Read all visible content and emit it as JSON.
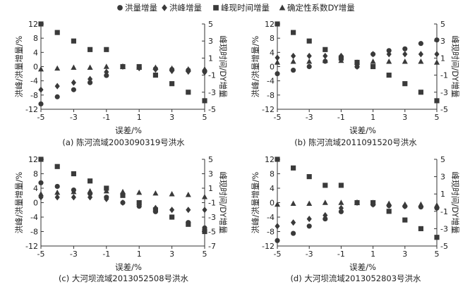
{
  "legend": [
    {
      "marker": "circle",
      "label": "洪量增量"
    },
    {
      "marker": "diamond",
      "label": "洪峰增量"
    },
    {
      "marker": "square",
      "label": "峰现时间增量"
    },
    {
      "marker": "triangle",
      "label": "确定性系数DY增量"
    }
  ],
  "chart_data": [
    {
      "type": "scatter",
      "caption": "(a) 陈河流域2003090319号洪水",
      "xlabel": "误差/%",
      "ylabel_left": "洪峰/洪量增量/%",
      "ylabel_right": "峰现时间/DY增量",
      "xlim": [
        -5,
        5
      ],
      "xticks": [
        -5,
        -3,
        -1,
        1,
        3,
        5
      ],
      "ylim_left": [
        -12,
        12
      ],
      "yticks_left": [
        -12,
        -8,
        -4,
        0,
        4,
        8,
        12
      ],
      "ylim_right": [
        -5,
        5
      ],
      "yticks_right": [
        -5,
        -3,
        -1,
        1,
        3,
        5
      ],
      "series": [
        {
          "name": "洪量增量",
          "marker": "circle",
          "axis": "left",
          "x": [
            -5,
            -4,
            -3,
            -2,
            -1,
            0,
            1,
            2,
            3,
            4,
            5
          ],
          "y": [
            -10.5,
            -8.5,
            -6.5,
            -4.5,
            -2.5,
            0,
            -0.3,
            -0.6,
            -0.8,
            -1.0,
            -1.2
          ]
        },
        {
          "name": "洪峰增量",
          "marker": "diamond",
          "axis": "left",
          "x": [
            -5,
            -4,
            -3,
            -2,
            -1,
            0,
            1,
            2,
            3,
            4,
            5
          ],
          "y": [
            -6.5,
            -5.5,
            -4.5,
            -3.5,
            -1.5,
            0,
            -0.4,
            -0.8,
            -1.2,
            -1.4,
            -1.6
          ]
        },
        {
          "name": "峰现时间增量",
          "marker": "square",
          "axis": "right",
          "x": [
            -5,
            -4,
            -3,
            -2,
            -1,
            0,
            1,
            2,
            3,
            4,
            5
          ],
          "y": [
            5,
            4,
            3,
            2,
            2,
            0,
            0,
            -1,
            -2,
            -3,
            -4
          ]
        },
        {
          "name": "确定性系数DY增量",
          "marker": "triangle",
          "axis": "right",
          "x": [
            -5,
            -4,
            -3,
            -2,
            -1,
            0,
            1,
            2,
            3,
            4,
            5
          ],
          "y": [
            -0.3,
            -0.2,
            -0.1,
            -0.1,
            0,
            0,
            -0.1,
            -0.1,
            -0.2,
            -0.3,
            -0.3
          ]
        }
      ]
    },
    {
      "type": "scatter",
      "caption": "(b) 陈河流域2011091520号洪水",
      "xlabel": "误差/%",
      "ylabel_left": "洪峰/洪量增量/%",
      "ylabel_right": "峰现时间/DY增量",
      "xlim": [
        -5,
        5
      ],
      "xticks": [
        -5,
        -3,
        -1,
        1,
        3,
        5
      ],
      "ylim_left": [
        -12,
        12
      ],
      "yticks_left": [
        -12,
        -8,
        -4,
        0,
        4,
        8,
        12
      ],
      "ylim_right": [
        -5,
        5
      ],
      "yticks_right": [
        -5,
        -3,
        -1,
        1,
        3,
        5
      ],
      "series": [
        {
          "name": "洪量增量",
          "marker": "circle",
          "axis": "left",
          "x": [
            -5,
            -4,
            -3,
            -2,
            -1,
            0,
            1,
            2,
            3,
            4,
            5
          ],
          "y": [
            -2,
            -1,
            0,
            1.5,
            2.5,
            0,
            3.5,
            4.5,
            5,
            6.5,
            7.5
          ]
        },
        {
          "name": "洪峰增量",
          "marker": "diamond",
          "axis": "left",
          "x": [
            -5,
            -4,
            -3,
            -2,
            -1,
            0,
            1,
            2,
            3,
            4,
            5
          ],
          "y": [
            2.5,
            3,
            3,
            3,
            3,
            0,
            3.5,
            3.5,
            3.5,
            3.5,
            3.5
          ]
        },
        {
          "name": "峰现时间增量",
          "marker": "square",
          "axis": "right",
          "x": [
            -5,
            -4,
            -3,
            -2,
            -1,
            0,
            1,
            2,
            3,
            4,
            5
          ],
          "y": [
            5,
            4,
            3,
            2,
            1,
            0.5,
            0,
            -1,
            -2,
            -3,
            -4
          ]
        },
        {
          "name": "确定性系数DY增量",
          "marker": "triangle",
          "axis": "right",
          "x": [
            -5,
            -4,
            -3,
            -2,
            -1,
            0,
            1,
            2,
            3,
            4,
            5
          ],
          "y": [
            0.5,
            0.6,
            0.6,
            0.7,
            0.7,
            0.5,
            0.6,
            0.6,
            0.6,
            0.6,
            0.5
          ]
        }
      ]
    },
    {
      "type": "scatter",
      "caption": "(c) 大河坝流域2013052508号洪水",
      "xlabel": "误差/%",
      "ylabel_left": "洪峰/洪量增量/%",
      "ylabel_right": "峰现时间/DY增量",
      "xlim": [
        -5,
        5
      ],
      "xticks": [
        -5,
        -3,
        -1,
        1,
        3,
        5
      ],
      "ylim_left": [
        -12,
        12
      ],
      "yticks_left": [
        -12,
        -8,
        -4,
        0,
        4,
        8,
        12
      ],
      "ylim_right": [
        -7,
        5
      ],
      "yticks_right": [
        -7,
        -5,
        -3,
        -1,
        1,
        3,
        5
      ],
      "series": [
        {
          "name": "洪量增量",
          "marker": "circle",
          "axis": "left",
          "x": [
            -5,
            -4,
            -3,
            -2,
            -1,
            0,
            1,
            2,
            3,
            4,
            5
          ],
          "y": [
            5.5,
            4.5,
            3.5,
            2.5,
            1.5,
            0,
            -1,
            -2.5,
            -4,
            -5.5,
            -7
          ]
        },
        {
          "name": "洪峰增量",
          "marker": "diamond",
          "axis": "left",
          "x": [
            -5,
            -4,
            -3,
            -2,
            -1,
            0,
            1,
            2,
            3,
            4,
            5
          ],
          "y": [
            1.5,
            1.5,
            1.5,
            1.5,
            1,
            0,
            -0.5,
            -1.5,
            -2,
            -2,
            -2
          ]
        },
        {
          "name": "峰现时间增量",
          "marker": "square",
          "axis": "right",
          "x": [
            -5,
            -4,
            -3,
            -2,
            -1,
            0,
            1,
            2,
            3,
            4,
            5
          ],
          "y": [
            5,
            4,
            3,
            2,
            1,
            0,
            -1,
            -2,
            -3,
            -4,
            -5
          ]
        },
        {
          "name": "确定性系数DY增量",
          "marker": "triangle",
          "axis": "right",
          "x": [
            -5,
            -4,
            -3,
            -2,
            -1,
            0,
            1,
            2,
            3,
            4,
            5
          ],
          "y": [
            0.2,
            0.4,
            0.5,
            0.6,
            0.6,
            0.5,
            0.4,
            0.3,
            0.2,
            0.1,
            -0.2
          ]
        }
      ]
    },
    {
      "type": "scatter",
      "caption": "(d) 大河坝流域2013052803号洪水",
      "xlabel": "误差/%",
      "ylabel_left": "洪峰/洪量增量/%",
      "ylabel_right": "峰现时间/DY增量",
      "xlim": [
        -5,
        5
      ],
      "xticks": [
        -5,
        -3,
        -1,
        1,
        3,
        5
      ],
      "ylim_left": [
        -12,
        12
      ],
      "yticks_left": [
        -12,
        -8,
        -4,
        0,
        4,
        8,
        12
      ],
      "ylim_right": [
        -5,
        5
      ],
      "yticks_right": [
        -5,
        -3,
        -1,
        1,
        3,
        5
      ],
      "series": [
        {
          "name": "洪量增量",
          "marker": "circle",
          "axis": "left",
          "x": [
            -5,
            -4,
            -3,
            -2,
            -1,
            0,
            1,
            2,
            3,
            4,
            5
          ],
          "y": [
            -10.5,
            -8.5,
            -6.5,
            -4.5,
            -2.5,
            0,
            -0.5,
            -0.8,
            -1,
            -1.2,
            -1.5
          ]
        },
        {
          "name": "洪峰增量",
          "marker": "diamond",
          "axis": "left",
          "x": [
            -5,
            -4,
            -3,
            -2,
            -1,
            0,
            1,
            2,
            3,
            4,
            5
          ],
          "y": [
            -6.5,
            -5.5,
            -4.5,
            -3.5,
            -1.5,
            0,
            -0.5,
            -0.8,
            -1,
            -1,
            -1.5
          ]
        },
        {
          "name": "峰现时间增量",
          "marker": "square",
          "axis": "right",
          "x": [
            -5,
            -4,
            -3,
            -2,
            -1,
            0,
            1,
            2,
            3,
            4,
            5
          ],
          "y": [
            5,
            4,
            3,
            2,
            2,
            0,
            0,
            -1,
            -2,
            -3,
            -4
          ]
        },
        {
          "name": "确定性系数DY增量",
          "marker": "triangle",
          "axis": "right",
          "x": [
            -5,
            -4,
            -3,
            -2,
            -1,
            0,
            1,
            2,
            3,
            4,
            5
          ],
          "y": [
            -0.2,
            -0.1,
            -0.1,
            0,
            0,
            0,
            0,
            -0.1,
            -0.2,
            -0.2,
            -0.3
          ]
        }
      ]
    }
  ]
}
